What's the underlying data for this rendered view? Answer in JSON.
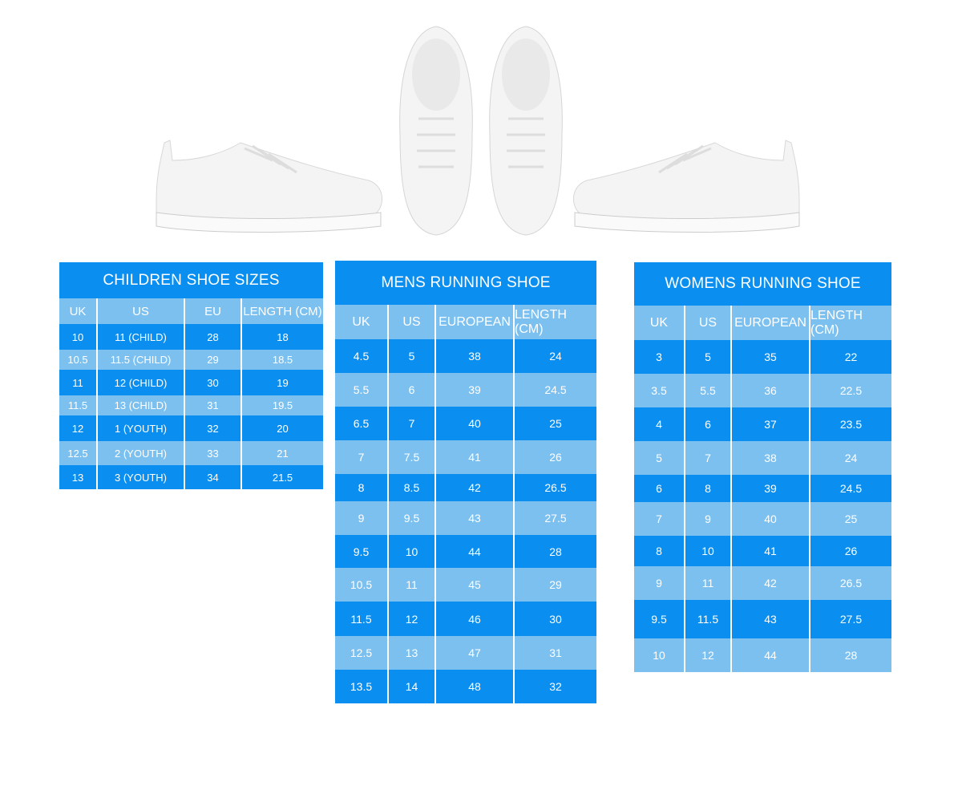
{
  "colors": {
    "dark": "#0a8ff0",
    "light": "#7cc0f0"
  },
  "images": [
    "sneaker-side-left",
    "sneaker-top-left",
    "sneaker-top-right",
    "sneaker-side-right"
  ],
  "children": {
    "title": "CHILDREN SHOE SIZES",
    "headers": [
      "UK",
      "US",
      "EU",
      "LENGTH (CM)"
    ],
    "rows": [
      [
        "10",
        "11 (CHILD)",
        "28",
        "18"
      ],
      [
        "10.5",
        "11.5 (CHILD)",
        "29",
        "18.5"
      ],
      [
        "11",
        "12 (CHILD)",
        "30",
        "19"
      ],
      [
        "11.5",
        "13 (CHILD)",
        "31",
        "19.5"
      ],
      [
        "12",
        "1 (YOUTH)",
        "32",
        "20"
      ],
      [
        "12.5",
        "2 (YOUTH)",
        "33",
        "21"
      ],
      [
        "13",
        "3 (YOUTH)",
        "34",
        "21.5"
      ]
    ]
  },
  "mens": {
    "title": "MENS RUNNING SHOE",
    "headers": [
      "UK",
      "US",
      "EUROPEAN",
      "LENGTH (CM)"
    ],
    "rows": [
      [
        "4.5",
        "5",
        "38",
        "24"
      ],
      [
        "5.5",
        "6",
        "39",
        "24.5"
      ],
      [
        "6.5",
        "7",
        "40",
        "25"
      ],
      [
        "7",
        "7.5",
        "41",
        "26"
      ],
      [
        "8",
        "8.5",
        "42",
        "26.5"
      ],
      [
        "9",
        "9.5",
        "43",
        "27.5"
      ],
      [
        "9.5",
        "10",
        "44",
        "28"
      ],
      [
        "10.5",
        "11",
        "45",
        "29"
      ],
      [
        "11.5",
        "12",
        "46",
        "30"
      ],
      [
        "12.5",
        "13",
        "47",
        "31"
      ],
      [
        "13.5",
        "14",
        "48",
        "32"
      ]
    ]
  },
  "womens": {
    "title": "WOMENS RUNNING SHOE",
    "headers": [
      "UK",
      "US",
      "EUROPEAN",
      "LENGTH (CM)"
    ],
    "rows": [
      [
        "3",
        "5",
        "35",
        "22"
      ],
      [
        "3.5",
        "5.5",
        "36",
        "22.5"
      ],
      [
        "4",
        "6",
        "37",
        "23.5"
      ],
      [
        "5",
        "7",
        "38",
        "24"
      ],
      [
        "6",
        "8",
        "39",
        "24.5"
      ],
      [
        "7",
        "9",
        "40",
        "25"
      ],
      [
        "8",
        "10",
        "41",
        "26"
      ],
      [
        "9",
        "11",
        "42",
        "26.5"
      ],
      [
        "9.5",
        "11.5",
        "43",
        "27.5"
      ],
      [
        "10",
        "12",
        "44",
        "28"
      ]
    ]
  }
}
